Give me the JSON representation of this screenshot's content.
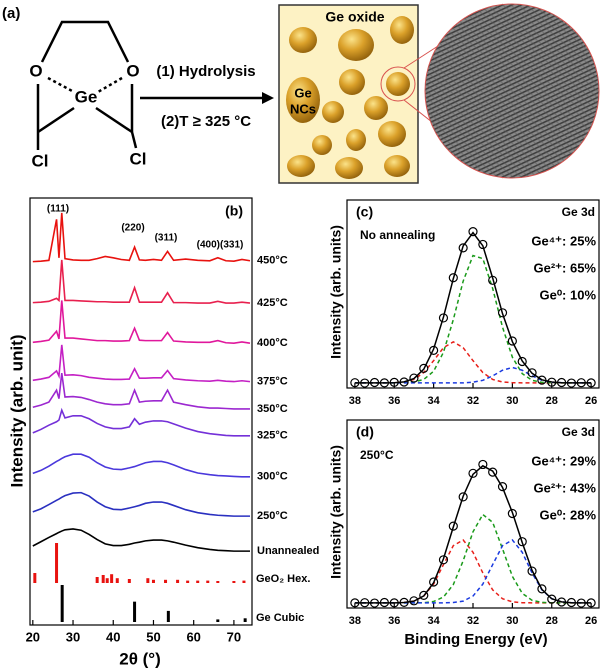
{
  "panel_a": {
    "label": "(a)",
    "atoms": [
      "O",
      "O",
      "Ge",
      "Cl",
      "Cl"
    ],
    "steps": [
      "(1) Hydrolysis",
      "(2)T ≥ 325 °C"
    ],
    "matrix": "Ge oxide",
    "particles": [
      "Ge",
      "NCs"
    ]
  },
  "chart_data": [
    {
      "type": "line",
      "label": "(b)",
      "ylabel": "Intensity (arb. unit)",
      "xlabel": "2θ (°)",
      "annotations": [
        "(111)",
        "(220)",
        "(311)",
        "(400)(331)"
      ],
      "xlim": [
        19.3,
        74.5
      ],
      "xticks": [
        20,
        30,
        40,
        50,
        60,
        70
      ],
      "ylim": [
        0,
        100
      ],
      "x": [
        20,
        22,
        24,
        25.9,
        26.5,
        27.2,
        28,
        30,
        32,
        34,
        36,
        38,
        40,
        42,
        44,
        45.3,
        46.5,
        48,
        50,
        52,
        53.5,
        55,
        58,
        61,
        64,
        66,
        68,
        70,
        72,
        74
      ],
      "series": [
        {
          "name": "450°C",
          "color": "#e8120f",
          "values": [
            85.1,
            85.2,
            85.4,
            95,
            86,
            96.5,
            85.8,
            85.5,
            85.4,
            85.4,
            85.8,
            86.3,
            86,
            85.6,
            85.4,
            88.5,
            85.5,
            85.4,
            85.6,
            85.4,
            87.5,
            85.4,
            85.7,
            85.4,
            85.3,
            86,
            85.3,
            85.2,
            85.6,
            85.3
          ]
        },
        {
          "name": "425°C",
          "color": "#e8204e",
          "values": [
            75.5,
            75.6,
            75.8,
            76.5,
            76,
            85.5,
            76,
            76,
            75.9,
            75.8,
            75.7,
            75.7,
            75.6,
            75.6,
            75.6,
            79,
            75.6,
            75.6,
            75.6,
            75.6,
            77.8,
            75.5,
            75.5,
            75.4,
            75.4,
            75.8,
            75.4,
            75.4,
            75.6,
            75.4
          ]
        },
        {
          "name": "400°C",
          "color": "#e0189c",
          "values": [
            66.2,
            66.4,
            66.7,
            68.8,
            67,
            76,
            67.2,
            67.2,
            67,
            66.8,
            66.6,
            66.6,
            66.5,
            66.5,
            66.6,
            69.5,
            66.7,
            66.6,
            66.6,
            66.6,
            68.5,
            66.5,
            66.3,
            66.2,
            66.2,
            66.6,
            66.1,
            66,
            66.3,
            66
          ]
        },
        {
          "name": "375°C",
          "color": "#c420c4",
          "values": [
            57.3,
            57.6,
            58,
            59.5,
            58.3,
            65.6,
            58.5,
            58.6,
            58.4,
            58,
            57.8,
            57.6,
            57.5,
            57.5,
            57.6,
            60,
            57.8,
            57.8,
            57.9,
            57.9,
            59.6,
            57.7,
            57.4,
            57.2,
            57.1,
            57.3,
            57.1,
            57,
            57.2,
            57
          ]
        },
        {
          "name": "350°C",
          "color": "#9c28d0",
          "values": [
            51,
            51.5,
            52.2,
            55,
            53,
            59,
            53.4,
            53.5,
            53.3,
            52.8,
            52.2,
            51.8,
            51.6,
            51.6,
            51.8,
            55,
            52.2,
            52.4,
            52.5,
            52.5,
            55,
            52.2,
            51.6,
            51.1,
            50.8,
            50.8,
            50.7,
            50.6,
            50.6,
            50.6
          ]
        },
        {
          "name": "325°C",
          "color": "#7430d8",
          "values": [
            45,
            45.8,
            46.8,
            47.6,
            48,
            50.3,
            48.5,
            49,
            49,
            48.3,
            47.2,
            46.4,
            46,
            46,
            46.4,
            48.3,
            47,
            47.5,
            47.8,
            47.8,
            47.6,
            47.1,
            46.1,
            45.3,
            44.8,
            44.6,
            44.4,
            44.3,
            44.3,
            44.3
          ]
        },
        {
          "name": "300°C",
          "color": "#4a38dc",
          "values": [
            35.5,
            36.2,
            37.2,
            38.3,
            38.6,
            39,
            39.4,
            40,
            40,
            39.3,
            38,
            37,
            36.5,
            36.4,
            36.8,
            37.1,
            37.5,
            38,
            38.3,
            38.3,
            38,
            37.5,
            36.4,
            35.6,
            35.2,
            35,
            34.9,
            34.8,
            34.7,
            34.7
          ]
        },
        {
          "name": "250°C",
          "color": "#2a30c0",
          "values": [
            26.5,
            27.2,
            28.2,
            29.2,
            29.5,
            29.9,
            30.3,
            30.9,
            31,
            30.2,
            28.8,
            27.7,
            27.1,
            27,
            27.4,
            27.7,
            28,
            28.5,
            28.8,
            28.8,
            28.5,
            28,
            27,
            26.3,
            25.9,
            25.7,
            25.6,
            25.5,
            25.5,
            25.5
          ]
        },
        {
          "name": "Unannealed",
          "color": "#000000",
          "values": [
            18.5,
            19.5,
            20.5,
            21.4,
            21.7,
            22,
            22.3,
            22.5,
            22.2,
            21.2,
            20,
            19,
            18.6,
            18.6,
            18.9,
            19.2,
            19.4,
            19.7,
            19.9,
            19.9,
            19.7,
            19.4,
            18.7,
            18.1,
            17.7,
            17.5,
            17.4,
            17.3,
            17.3,
            17.3
          ]
        }
      ]
    },
    {
      "type": "stick",
      "label": "GeO₂ Hex.",
      "color": "#e8120f",
      "xlim": [
        19.3,
        74.5
      ],
      "ylim": [
        0,
        100
      ],
      "x": [
        20.5,
        25.9,
        36,
        37.5,
        38.5,
        39.6,
        41,
        44,
        48.6,
        50,
        53,
        56,
        58.5,
        61,
        63.5,
        66,
        70,
        72.5
      ],
      "values": [
        25,
        100,
        15,
        20,
        12,
        22,
        12,
        10,
        12,
        8,
        8,
        8,
        6,
        6,
        6,
        5,
        5,
        6
      ]
    },
    {
      "type": "stick",
      "label": "Ge Cubic",
      "color": "#000000",
      "xlim": [
        19.3,
        74.5
      ],
      "ylim": [
        0,
        100
      ],
      "x": [
        27.3,
        45.3,
        53.7,
        66,
        72.8
      ],
      "values": [
        100,
        55,
        30,
        7,
        10
      ]
    },
    {
      "type": "xps",
      "label": "(c)",
      "annotations": [
        "No annealing",
        "Ge 3d"
      ],
      "ylabel": "Intensity (arb. units)",
      "xlim": [
        38.4,
        25.6
      ],
      "xticks": [
        38,
        36,
        34,
        32,
        30,
        28,
        26
      ],
      "ylim": [
        0,
        110
      ],
      "x": [
        38,
        37.5,
        37,
        36.5,
        36,
        35.5,
        35,
        34.5,
        34,
        33.5,
        33,
        32.5,
        32,
        31.5,
        31,
        30.5,
        30,
        29.5,
        29,
        28.5,
        28,
        27.5,
        27,
        26.5,
        26
      ],
      "series": [
        {
          "name": "Ge⁴⁺: 25%",
          "color": "#e8201a",
          "dash": true,
          "values": [
            3,
            3,
            3,
            3,
            3.1,
            3.5,
            5,
            9,
            16,
            23.6,
            27,
            23.6,
            16,
            9,
            5,
            3.5,
            3.1,
            3,
            3,
            3,
            3,
            3,
            3,
            3,
            3
          ]
        },
        {
          "name": "Ge²⁺: 65%",
          "color": "#1a9a1a",
          "dash": true,
          "values": [
            3,
            3,
            3,
            3,
            3,
            3.1,
            3.5,
            5,
            9.8,
            20.9,
            40,
            62.5,
            77.5,
            75.7,
            58.2,
            35.6,
            18,
            8.4,
            4.5,
            3.3,
            3.1,
            3,
            3,
            3,
            3
          ]
        },
        {
          "name": "Ge⁰: 10%",
          "color": "#1a3ae0",
          "dash": true,
          "values": [
            3,
            3,
            3,
            3,
            3,
            3,
            3,
            3,
            3,
            3,
            3,
            3,
            3.4,
            4.5,
            7.1,
            10.4,
            12,
            10.4,
            7.1,
            4.5,
            3.4,
            3.1,
            3,
            3,
            3
          ]
        },
        {
          "color": "#000000",
          "values": [
            3,
            3,
            3,
            3,
            3.1,
            3.6,
            5.5,
            11,
            22.8,
            41.5,
            64,
            83.1,
            90.9,
            83.2,
            64.3,
            43.5,
            27.1,
            15.8,
            8.6,
            4.8,
            3.5,
            3.1,
            3,
            3,
            3
          ]
        },
        {
          "color": "#000000",
          "marker": "circle",
          "values": [
            3.1,
            2.9,
            3.2,
            3,
            3.3,
            3.5,
            5.8,
            11.5,
            22,
            41,
            64.5,
            82,
            91.5,
            84,
            63,
            44,
            27.5,
            15.5,
            8.9,
            4.6,
            3.4,
            3.2,
            2.9,
            3.1,
            3
          ]
        }
      ]
    },
    {
      "type": "xps",
      "label": "(d)",
      "annotations": [
        "250°C",
        "Ge 3d"
      ],
      "ylabel": "Intensity (arb. units)",
      "xlabel": "Binding Energy (eV)",
      "xlim": [
        38.4,
        25.6
      ],
      "xticks": [
        38,
        36,
        34,
        32,
        30,
        28,
        26
      ],
      "ylim": [
        0,
        110
      ],
      "x": [
        38,
        37.5,
        37,
        36.5,
        36,
        35.5,
        35,
        34.5,
        34,
        33.5,
        33,
        32.5,
        32,
        31.5,
        31,
        30.5,
        30,
        29.5,
        29,
        28.5,
        28,
        27.5,
        27,
        26.5,
        26
      ],
      "series": [
        {
          "name": "Ge⁴⁺: 29%",
          "color": "#e8201a",
          "dash": true,
          "values": [
            3,
            3,
            3,
            3,
            3,
            3.2,
            4,
            7,
            14,
            25.4,
            36.5,
            39.8,
            32.6,
            20.5,
            10.6,
            5.4,
            3.6,
            3.1,
            3,
            3,
            3,
            3,
            3,
            3,
            3
          ]
        },
        {
          "name": "Ge²⁺: 43%",
          "color": "#1a9a1a",
          "dash": true,
          "values": [
            3,
            3,
            3,
            3,
            3,
            3,
            3,
            3.1,
            3.8,
            6.4,
            13.7,
            27.6,
            44.6,
            54.7,
            50.1,
            34.6,
            18.5,
            8.6,
            4.5,
            3.3,
            3,
            3,
            3,
            3,
            3
          ]
        },
        {
          "name": "Ge⁰: 28%",
          "color": "#1a3ae0",
          "dash": true,
          "values": [
            3,
            3,
            3,
            3,
            3,
            3,
            3,
            3,
            3,
            3,
            3.2,
            4,
            7,
            14,
            25.4,
            36.5,
            39.8,
            32.6,
            20.5,
            10.6,
            5.4,
            3.6,
            3.1,
            3,
            3
          ]
        },
        {
          "color": "#000000",
          "values": [
            3,
            3,
            3,
            3,
            3,
            3.2,
            4,
            7.1,
            14.8,
            28.8,
            47.4,
            65.4,
            78.2,
            83.2,
            80.1,
            70.5,
            55.9,
            38.3,
            22,
            10.9,
            5.4,
            3.6,
            3.1,
            3,
            3
          ]
        },
        {
          "color": "#000000",
          "marker": "circle",
          "values": [
            3,
            3.1,
            2.9,
            3.2,
            3,
            3.3,
            4.2,
            7.4,
            15.2,
            28.2,
            47.9,
            65,
            78.8,
            84,
            79.5,
            71,
            55.3,
            38.8,
            21.6,
            11.2,
            5.2,
            3.5,
            3.2,
            2.9,
            3
          ]
        }
      ]
    }
  ]
}
